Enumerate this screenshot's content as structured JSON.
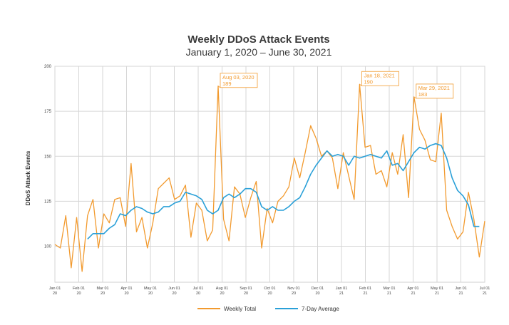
{
  "chart_data": {
    "type": "line",
    "title": "Weekly DDoS Attack Events",
    "subtitle": "January 1, 2020 – June 30, 2021",
    "ylabel": "DDoS Attack Events",
    "xlabel": "",
    "ylim": [
      80,
      200
    ],
    "yticks": [
      100,
      125,
      150,
      175,
      200
    ],
    "grid": true,
    "legend_position": "bottom-center",
    "x_ticks": [
      {
        "month": "Jan 01",
        "year": "20"
      },
      {
        "month": "Feb 01",
        "year": "20"
      },
      {
        "month": "Mar 01",
        "year": "20"
      },
      {
        "month": "Apr 01",
        "year": "20"
      },
      {
        "month": "May 01",
        "year": "20"
      },
      {
        "month": "Jun 01",
        "year": "20"
      },
      {
        "month": "Jul 01",
        "year": "20"
      },
      {
        "month": "Aug 01",
        "year": "20"
      },
      {
        "month": "Sep 01",
        "year": "20"
      },
      {
        "month": "Oct 01",
        "year": "20"
      },
      {
        "month": "Nov 01",
        "year": "20"
      },
      {
        "month": "Dec 01",
        "year": "20"
      },
      {
        "month": "Jan 01",
        "year": "21"
      },
      {
        "month": "Feb 01",
        "year": "21"
      },
      {
        "month": "Mar 01",
        "year": "21"
      },
      {
        "month": "Apr 01",
        "year": "21"
      },
      {
        "month": "May 01",
        "year": "21"
      },
      {
        "month": "Jun 01",
        "year": "21"
      },
      {
        "month": "Jul 01",
        "year": "21"
      }
    ],
    "series": [
      {
        "name": "Weekly Total",
        "color": "#f29a2e",
        "values": [
          101,
          99,
          117,
          88,
          116,
          86,
          117,
          126,
          99,
          118,
          113,
          126,
          127,
          111,
          146,
          108,
          116,
          99,
          113,
          132,
          135,
          138,
          126,
          128,
          134,
          105,
          124,
          120,
          103,
          109,
          189,
          115,
          103,
          133,
          129,
          116,
          127,
          136,
          99,
          121,
          113,
          125,
          128,
          133,
          149,
          138,
          152,
          167,
          160,
          150,
          153,
          149,
          132,
          152,
          139,
          126,
          190,
          155,
          156,
          140,
          142,
          133,
          152,
          140,
          162,
          127,
          183,
          165,
          159,
          148,
          147,
          174,
          120,
          111,
          104,
          108,
          130,
          115,
          94,
          114
        ]
      },
      {
        "name": "7-Day Average",
        "color": "#2aa0d8",
        "start_index": 6,
        "values": [
          104,
          107,
          107,
          107,
          110,
          112,
          118,
          117,
          120,
          122,
          121,
          119,
          118,
          119,
          122,
          122,
          124,
          125,
          130,
          129,
          128,
          126,
          120,
          118,
          120,
          127,
          129,
          127,
          129,
          132,
          132,
          130,
          122,
          120,
          122,
          120,
          120,
          122,
          125,
          127,
          133,
          140,
          145,
          149,
          153,
          150,
          151,
          150,
          145,
          150,
          149,
          150,
          151,
          150,
          149,
          153,
          145,
          146,
          142,
          147,
          152,
          155,
          154,
          156,
          157,
          156,
          149,
          138,
          131,
          128,
          123,
          111,
          111
        ]
      }
    ],
    "annotations": [
      {
        "index": 30,
        "label": "Aug 03, 2020",
        "value_text": "189"
      },
      {
        "index": 56,
        "label": "Jan 18, 2021",
        "value_text": "190"
      },
      {
        "index": 66,
        "label": "Mar 29, 2021",
        "value_text": "183"
      }
    ]
  }
}
